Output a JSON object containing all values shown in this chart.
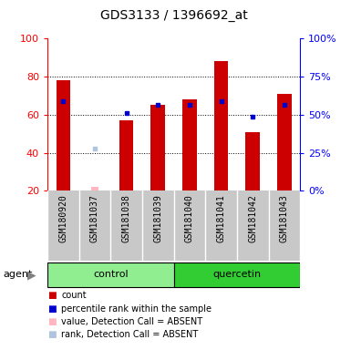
{
  "title": "GDS3133 / 1396692_at",
  "samples": [
    "GSM180920",
    "GSM181037",
    "GSM181038",
    "GSM181039",
    "GSM181040",
    "GSM181041",
    "GSM181042",
    "GSM181043"
  ],
  "count_values": [
    78,
    null,
    57,
    65,
    68,
    88,
    51,
    71
  ],
  "percentile_values": [
    67,
    null,
    61,
    65,
    65,
    67,
    null,
    65
  ],
  "absent_value_values": [
    null,
    22,
    null,
    null,
    null,
    null,
    null,
    null
  ],
  "absent_rank_values": [
    null,
    42,
    null,
    null,
    null,
    null,
    null,
    null
  ],
  "absent_percentile_values": [
    null,
    null,
    null,
    null,
    null,
    null,
    59,
    null
  ],
  "ylim": [
    20,
    100
  ],
  "y2lim": [
    0,
    100
  ],
  "yticks": [
    20,
    40,
    60,
    80,
    100
  ],
  "y2ticks": [
    0,
    25,
    50,
    75,
    100
  ],
  "grid_lines": [
    40,
    60,
    80
  ],
  "bar_color": "#CC0000",
  "percentile_color": "#0000CC",
  "absent_value_color": "#FFB6C1",
  "absent_rank_color": "#B0C4DE",
  "control_color": "#90EE90",
  "quercetin_color": "#32CD32",
  "bg_color": "#C8C8C8",
  "bar_width": 0.45,
  "figsize": [
    3.85,
    3.84
  ],
  "dpi": 100
}
